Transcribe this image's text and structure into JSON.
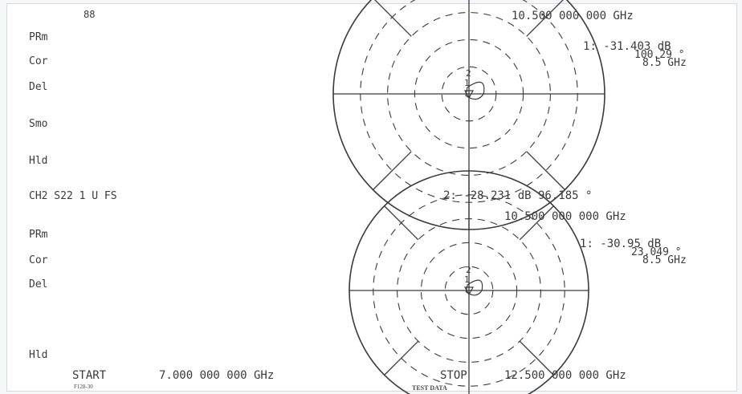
{
  "page": {
    "footer_code": "F128-30",
    "footer_label": "TEST DATA"
  },
  "chart_data": [
    {
      "type": "polar",
      "channel_label": "",
      "side_labels": [
        "PRm",
        "Cor",
        "Del",
        "Smo",
        "Hld"
      ],
      "top_label": "88",
      "frequency_readout": "10.500 000 000 GHz",
      "marker_readouts": [
        {
          "marker": "1",
          "magnitude": "-31.403 dB",
          "angle": "100.29 °",
          "frequency": "8.5 GHz"
        }
      ],
      "rings": 5,
      "ring_dashed": [
        true,
        true,
        true,
        true,
        false
      ],
      "spokes_deg": [
        0,
        45,
        90,
        135,
        180,
        225,
        270,
        315
      ],
      "trace_markers": [
        "1",
        "2"
      ]
    },
    {
      "type": "polar",
      "channel_label": "CH2 S22   1 U FS",
      "header_readout": "2: -28.231 dB   96.185 °",
      "side_labels": [
        "PRm",
        "Cor",
        "Del",
        "Hld"
      ],
      "frequency_readout": "10.500 000 000 GHz",
      "marker_readouts": [
        {
          "marker": "1",
          "magnitude": "-30.95 dB",
          "angle": "23.049 °",
          "frequency": "8.5 GHz"
        }
      ],
      "rings": 5,
      "ring_dashed": [
        true,
        true,
        true,
        true,
        false
      ],
      "spokes_deg": [
        0,
        45,
        90,
        135,
        180,
        225,
        270,
        315
      ],
      "trace_markers": [
        "1",
        "2"
      ]
    }
  ],
  "sweep": {
    "start_label": "START",
    "start_value": "7.000 000 000 GHz",
    "stop_label": "STOP",
    "stop_value": "12.500 000 000 GHz"
  },
  "colors": {
    "ink": "#3a3a3a",
    "paper": "#ffffff",
    "background": "#f6f7f9"
  }
}
